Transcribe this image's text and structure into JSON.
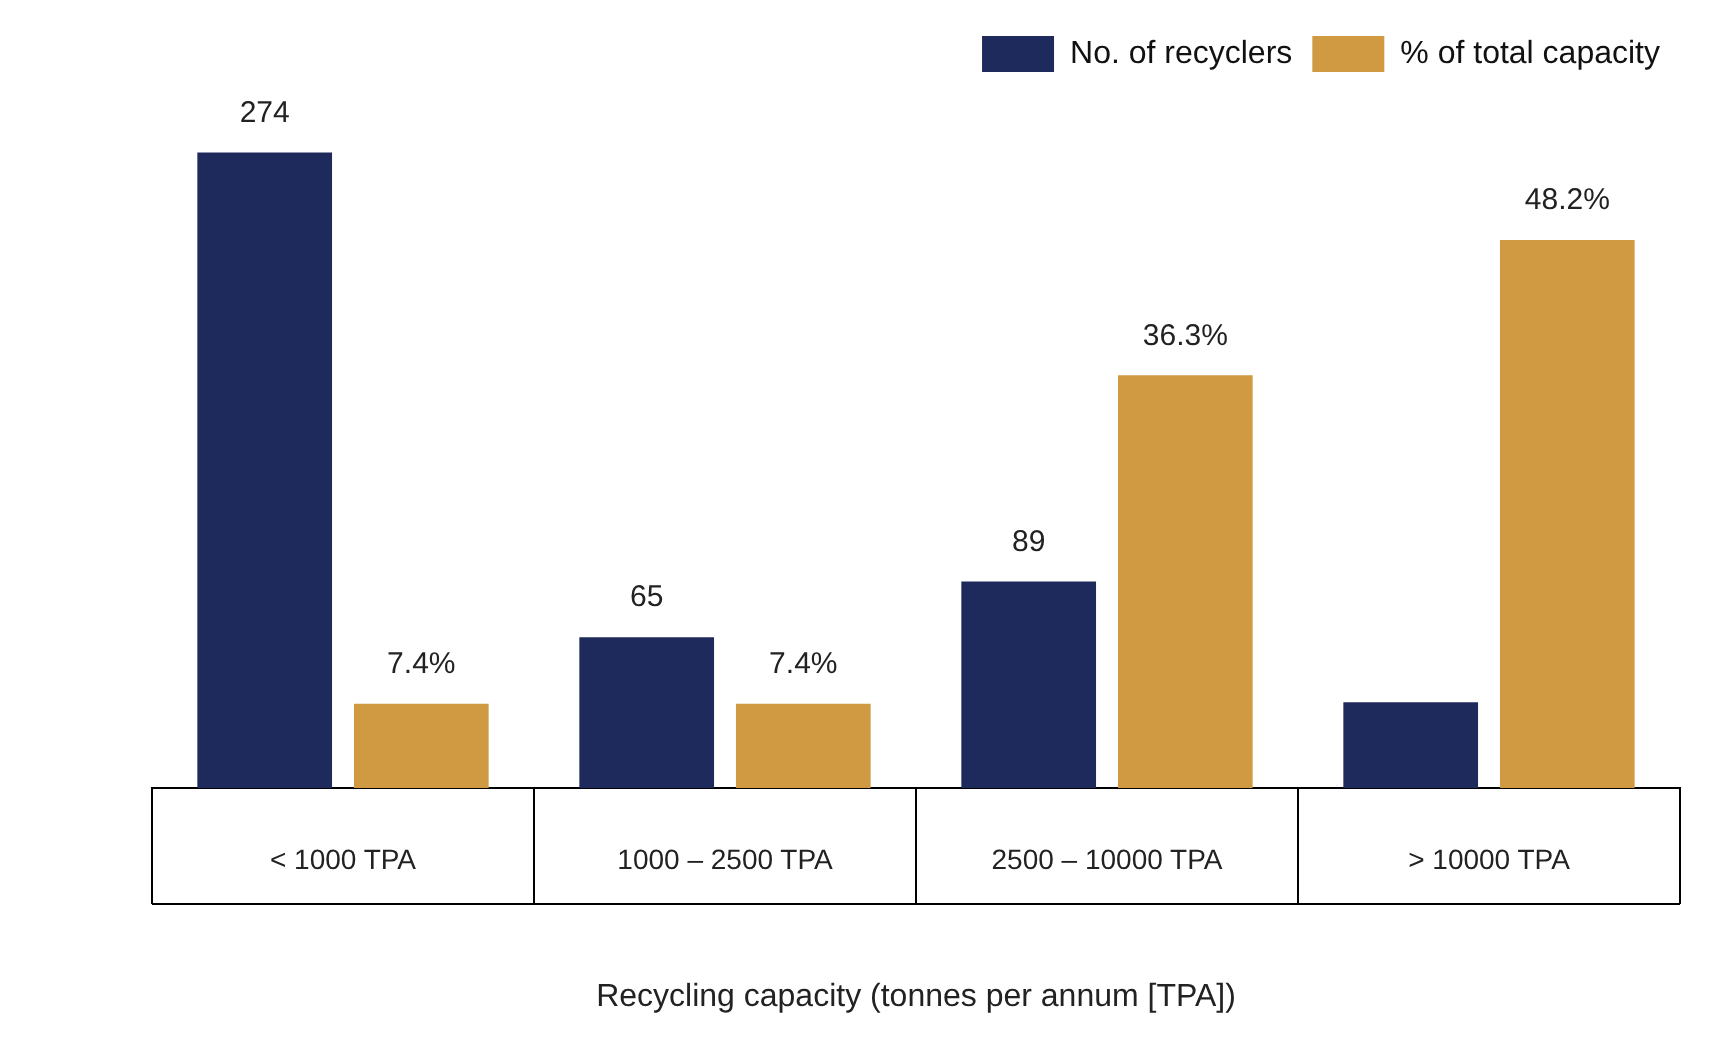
{
  "chart_data": {
    "type": "bar",
    "categories": [
      "< 1000 TPA",
      "1000 – 2500 TPA",
      "2500 – 10000 TPA",
      "> 10000 TPA"
    ],
    "series": [
      {
        "name": "No. of recyclers",
        "color": "#1f2a5c",
        "values": [
          274,
          65,
          89,
          37
        ],
        "value_labels": [
          "274",
          "65",
          "89",
          null
        ]
      },
      {
        "name": "% of total capacity",
        "color": "#d09a43",
        "axis": "y2",
        "values": [
          7.4,
          7.4,
          36.3,
          48.2
        ],
        "value_labels": [
          "7.4%",
          "7.4%",
          "36.3%",
          "48.2%"
        ]
      }
    ],
    "xlabel": "Recycling capacity (tonnes per annum [TPA])",
    "tick_labels": "x",
    "legend": "top right"
  }
}
